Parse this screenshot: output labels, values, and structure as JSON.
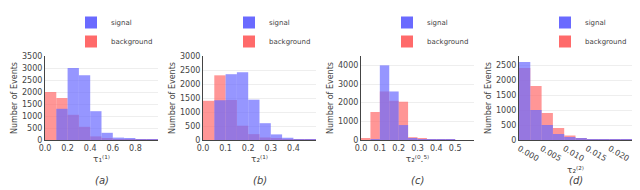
{
  "chart_data": [
    {
      "type": "histogram",
      "title": "(a)",
      "xlabel": "τ₁⁽¹⁾",
      "ylabel": "Number of Events",
      "xlim": [
        0,
        1.0
      ],
      "xticks": [
        {
          "value": 0.0,
          "label": "0.0"
        },
        0.2,
        0.4,
        0.6,
        0.8
      ],
      "ylim": [
        0,
        3500
      ],
      "yticks": [
        0,
        500,
        1000,
        1500,
        2000,
        2500,
        3000,
        3500
      ],
      "grid": "y",
      "legend": "upper right",
      "series": [
        {
          "name": "background",
          "color": "#ff6a6a",
          "values": [
            2000,
            1750,
            1050,
            550,
            150,
            60,
            20,
            5,
            2,
            1
          ],
          "bins": [
            0.0,
            0.1,
            0.2,
            0.3,
            0.4,
            0.5,
            0.6,
            0.7,
            0.8,
            0.9,
            1.0
          ]
        },
        {
          "name": "signal",
          "color": "#6a6aff",
          "values": [
            0,
            1300,
            3000,
            2700,
            1200,
            300,
            100,
            50,
            20,
            10
          ],
          "bins": [
            0.0,
            0.1,
            0.2,
            0.3,
            0.4,
            0.5,
            0.6,
            0.7,
            0.8,
            0.9,
            1.0
          ]
        }
      ]
    },
    {
      "type": "histogram",
      "title": "(b)",
      "xlabel": "τ₂⁽¹⁾",
      "ylabel": "Number of Events",
      "xlim": [
        0,
        0.5
      ],
      "xticks": [
        {
          "value": 0.0,
          "label": "0.0"
        },
        0.1,
        0.2,
        0.3,
        0.4
      ],
      "ylim": [
        0,
        3000
      ],
      "yticks": [
        0,
        500,
        1000,
        1500,
        2000,
        2500,
        3000
      ],
      "grid": "y",
      "legend": "upper right",
      "series": [
        {
          "name": "background",
          "color": "#ff6a6a",
          "values": [
            1400,
            2310,
            1430,
            510,
            210,
            90,
            40,
            10,
            5,
            2
          ],
          "bins": [
            0.0,
            0.05,
            0.1,
            0.15,
            0.2,
            0.25,
            0.3,
            0.35,
            0.4,
            0.45,
            0.5
          ]
        },
        {
          "name": "signal",
          "color": "#6a6aff",
          "values": [
            0,
            1420,
            2350,
            2420,
            1440,
            600,
            200,
            80,
            20,
            5
          ],
          "bins": [
            0.0,
            0.05,
            0.1,
            0.15,
            0.2,
            0.25,
            0.3,
            0.35,
            0.4,
            0.45,
            0.5
          ]
        }
      ]
    },
    {
      "type": "histogram",
      "title": "(c)",
      "xlabel": "τ₂⁽⁰.⁵⁾",
      "ylabel": "Number of Events",
      "xlim": [
        0.0,
        0.6
      ],
      "xticks": [
        {
          "value": 0.0,
          "label": "0.0"
        },
        0.1,
        0.2,
        0.3,
        0.4,
        0.5
      ],
      "ylim": [
        0,
        4500
      ],
      "yticks": [
        0,
        1000,
        2000,
        3000,
        4000
      ],
      "grid": "y",
      "legend": "upper right",
      "series": [
        {
          "name": "background",
          "color": "#ff6a6a",
          "values": [
            100,
            1500,
            2600,
            2100,
            2050,
            150,
            60,
            20,
            5,
            1,
            0,
            0
          ],
          "bins": [
            0.0,
            0.05,
            0.1,
            0.15,
            0.2,
            0.25,
            0.3,
            0.35,
            0.4,
            0.45,
            0.5,
            0.55,
            0.6
          ]
        },
        {
          "name": "signal",
          "color": "#6a6aff",
          "values": [
            0,
            50,
            4000,
            2600,
            800,
            100,
            20,
            5,
            2,
            1,
            0,
            0
          ],
          "bins": [
            0.0,
            0.05,
            0.1,
            0.15,
            0.2,
            0.25,
            0.3,
            0.35,
            0.4,
            0.45,
            0.5,
            0.55,
            0.6
          ]
        }
      ]
    },
    {
      "type": "histogram",
      "title": "(d)",
      "xlabel": "τ₂⁽²⁾",
      "ylabel": "Number of Events",
      "xlim": [
        0,
        0.025
      ],
      "xticks": [
        {
          "value": 0.0,
          "label": "0.000"
        },
        {
          "value": 0.005,
          "label": "0.005"
        },
        {
          "value": 0.01,
          "label": "0.010"
        },
        {
          "value": 0.015,
          "label": "0.015"
        },
        {
          "value": 0.02,
          "label": "0.020"
        }
      ],
      "ylim": [
        0,
        2800
      ],
      "yticks": [
        0,
        500,
        1000,
        1500,
        2000,
        2500
      ],
      "grid": "y",
      "legend": "upper right",
      "series": [
        {
          "name": "background",
          "color": "#ff6a6a",
          "values": [
            2400,
            1800,
            900,
            400,
            150,
            60,
            20,
            8,
            3,
            1
          ],
          "bins": [
            0.0,
            0.0025,
            0.005,
            0.0075,
            0.01,
            0.0125,
            0.015,
            0.0175,
            0.02,
            0.0225,
            0.025
          ]
        },
        {
          "name": "signal",
          "color": "#6a6aff",
          "values": [
            2600,
            1000,
            500,
            200,
            100,
            50,
            30,
            10,
            5,
            2
          ],
          "bins": [
            0.0,
            0.0025,
            0.005,
            0.0075,
            0.01,
            0.0125,
            0.015,
            0.0175,
            0.02,
            0.0225,
            0.025
          ]
        }
      ]
    }
  ]
}
